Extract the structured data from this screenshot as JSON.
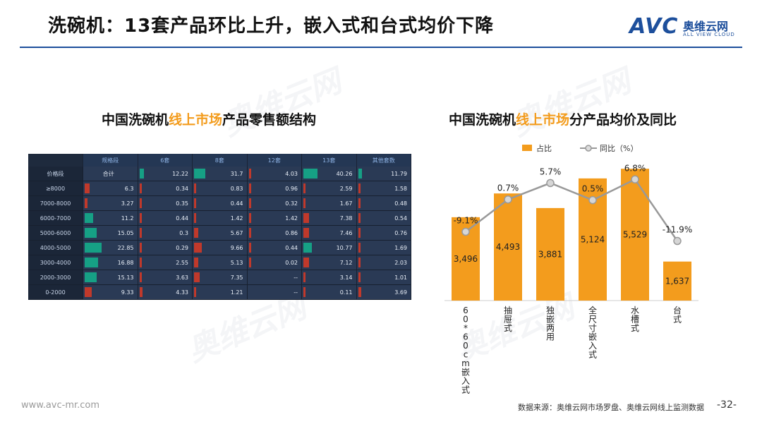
{
  "slide": {
    "title": "洗碗机：13套产品环比上升，嵌入式和台式均价下降",
    "logo_text": "AVC",
    "logo_cn": "奥维云网",
    "logo_en": "ALL VIEW CLOUD",
    "footer_url": "www.avc-mr.com",
    "source": "数据来源：奥维云网市场罗盘、奥维云网线上监测数据",
    "page": "-32-",
    "watermark_text": "奥维云网"
  },
  "left_title": {
    "pre": "中国洗碗机",
    "hl": "线上市场",
    "post": "产品零售额结构"
  },
  "right_title": {
    "pre": "中国洗碗机",
    "hl": "线上市场",
    "post": "分产品均价及同比"
  },
  "heatmap": {
    "columns": [
      "规格段",
      "6套",
      "8套",
      "12套",
      "13套",
      "其他套数"
    ],
    "header_row": [
      "价格段",
      "合计",
      "12.22",
      "31.7",
      "4.03",
      "40.26",
      "11.79"
    ],
    "rows": [
      {
        "label": "≥8000",
        "values": [
          "6.3",
          "0.34",
          "0.83",
          "0.96",
          "2.59",
          "1.58"
        ]
      },
      {
        "label": "7000-8000",
        "values": [
          "3.27",
          "0.35",
          "0.44",
          "0.32",
          "1.67",
          "0.48"
        ]
      },
      {
        "label": "6000-7000",
        "values": [
          "11.2",
          "0.44",
          "1.42",
          "1.42",
          "7.38",
          "0.54"
        ]
      },
      {
        "label": "5000-6000",
        "values": [
          "15.05",
          "0.3",
          "5.67",
          "0.86",
          "7.46",
          "0.76"
        ]
      },
      {
        "label": "4000-5000",
        "values": [
          "22.85",
          "0.29",
          "9.66",
          "0.44",
          "10.77",
          "1.69"
        ]
      },
      {
        "label": "3000-4000",
        "values": [
          "16.88",
          "2.55",
          "5.13",
          "0.02",
          "7.12",
          "2.03"
        ]
      },
      {
        "label": "2000-3000",
        "values": [
          "15.13",
          "3.63",
          "7.35",
          "--",
          "3.14",
          "1.01"
        ]
      },
      {
        "label": "0-2000",
        "values": [
          "9.33",
          "4.33",
          "1.21",
          "--",
          "0.11",
          "3.69"
        ]
      }
    ],
    "colors": {
      "positive": "#16a085",
      "negative": "#c0392b"
    }
  },
  "chart_data": {
    "type": "bar",
    "categories": [
      "60*60cm嵌入式",
      "抽屉式",
      "独嵌两用",
      "全尺寸嵌入式",
      "水槽式",
      "台式"
    ],
    "series": [
      {
        "name": "占比",
        "type": "bar",
        "values": [
          3496,
          4493,
          3881,
          5124,
          5529,
          1637
        ],
        "labels": [
          "3,496",
          "4,493",
          "3,881",
          "5,124",
          "5,529",
          "1,637"
        ],
        "color": "#f39c1d"
      },
      {
        "name": "同比（%）",
        "type": "line",
        "values": [
          -9.1,
          0.7,
          5.7,
          0.5,
          6.8,
          -11.9
        ],
        "labels": [
          "-9.1%",
          "0.7%",
          "5.7%",
          "0.5%",
          "6.8%",
          "-11.9%"
        ],
        "color": "#999999"
      }
    ],
    "ylim": [
      0,
      5800
    ],
    "y2lim": [
      -30,
      12
    ],
    "legend_position": "top"
  }
}
